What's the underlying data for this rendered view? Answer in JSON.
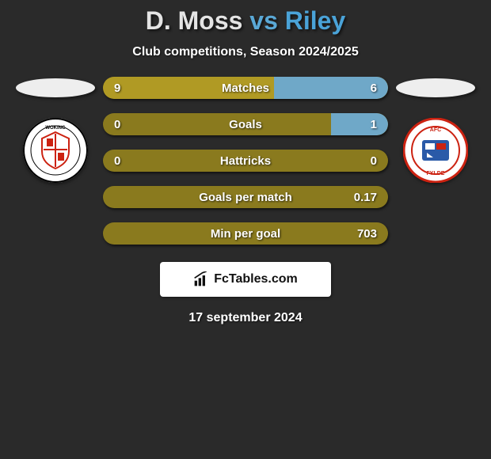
{
  "title": {
    "player1": "D. Moss",
    "vs": "vs",
    "player2": "Riley",
    "player1_color": "#e4e4e4",
    "vs_color": "#5aa8d6",
    "player2_color": "#4aa3d8"
  },
  "subtitle": "Club competitions, Season 2024/2025",
  "colors": {
    "background": "#2a2a2a",
    "bar_base": "#8a7a1e",
    "bar_left_fill": "#b09a24",
    "bar_right_fill": "#6fa8c8",
    "text": "#ffffff"
  },
  "ellipse": {
    "left_color": "#eeeeee",
    "right_color": "#eeeeee"
  },
  "badges": {
    "left": {
      "bg": "#ffffff",
      "ring": "#0a0a0a",
      "inner": "#cc1f1f",
      "text": "WOKING",
      "text_color": "#000000"
    },
    "right": {
      "bg": "#ffffff",
      "ring": "#cc1f1f",
      "inner": "#2a5aa8",
      "text": "AFC FYLDE",
      "text_color": "#cc1f1f"
    }
  },
  "metrics": [
    {
      "label": "Matches",
      "left_val": "9",
      "right_val": "6",
      "left_pct": 60,
      "right_pct": 40
    },
    {
      "label": "Goals",
      "left_val": "0",
      "right_val": "1",
      "left_pct": 0,
      "right_pct": 20
    },
    {
      "label": "Hattricks",
      "left_val": "0",
      "right_val": "0",
      "left_pct": 0,
      "right_pct": 0
    },
    {
      "label": "Goals per match",
      "left_val": "",
      "right_val": "0.17",
      "left_pct": 0,
      "right_pct": 0
    },
    {
      "label": "Min per goal",
      "left_val": "",
      "right_val": "703",
      "left_pct": 0,
      "right_pct": 0
    }
  ],
  "footer": {
    "brand": "FcTables.com",
    "date": "17 september 2024"
  }
}
